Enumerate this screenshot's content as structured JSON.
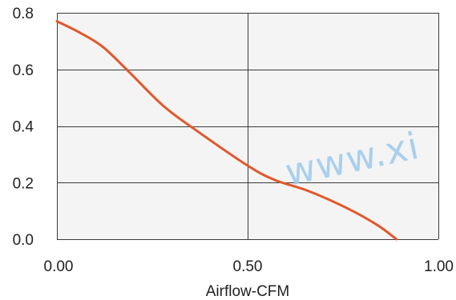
{
  "chart_data": {
    "type": "line",
    "title": "",
    "xlabel": "Airflow-CFM",
    "ylabel": "",
    "xlim": [
      0,
      1.0
    ],
    "ylim": [
      0,
      0.8
    ],
    "x_ticks": [
      0,
      0.5,
      1.0
    ],
    "x_tick_labels": [
      "0.00",
      "0.50",
      "1.00"
    ],
    "y_ticks": [
      0,
      0.2,
      0.4,
      0.6,
      0.8
    ],
    "y_tick_labels": [
      "0.0",
      "0.2",
      "0.4",
      "0.6",
      "0.8"
    ],
    "grid": true,
    "legend": "none",
    "series": [
      {
        "color": "#e2572b",
        "x": [
          0.0,
          0.06,
          0.12,
          0.19,
          0.28,
          0.37,
          0.5,
          0.57,
          0.66,
          0.76,
          0.84,
          0.89
        ],
        "y": [
          0.77,
          0.73,
          0.68,
          0.59,
          0.47,
          0.38,
          0.26,
          0.21,
          0.17,
          0.11,
          0.05,
          0.0
        ]
      }
    ]
  },
  "watermark": {
    "text": "www.xi"
  }
}
